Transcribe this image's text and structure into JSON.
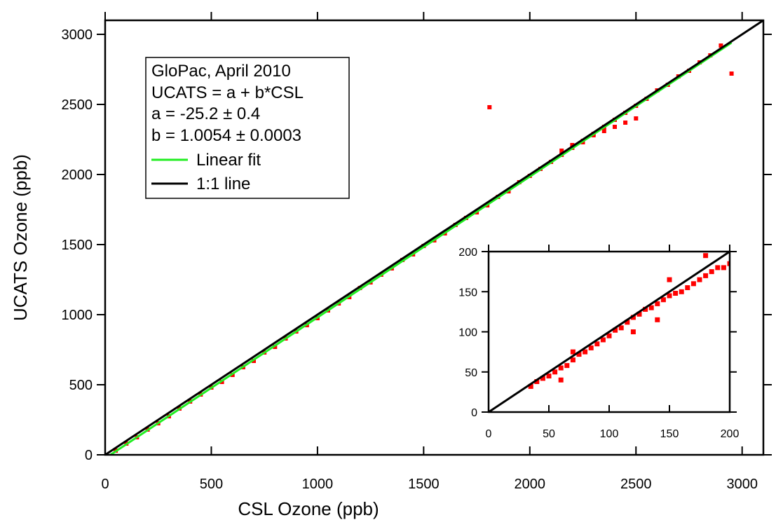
{
  "chart_data": [
    {
      "type": "scatter",
      "panel": "main",
      "xlabel": "CSL Ozone (ppb)",
      "ylabel": "UCATS Ozone (ppb)",
      "xlim": [
        0,
        3100
      ],
      "ylim": [
        0,
        3100
      ],
      "xticks": [
        0,
        500,
        1000,
        1500,
        2000,
        2500,
        3000
      ],
      "yticks": [
        0,
        500,
        1000,
        1500,
        2000,
        2500,
        3000
      ],
      "grid": false,
      "legend": {
        "placement": "top-left",
        "lines": [
          "GloPac, April 2010",
          "UCATS = a + b*CSL",
          "a = -25.2 ± 0.4",
          "b = 1.0054 ± 0.0003"
        ],
        "entries": [
          {
            "label": "Linear fit",
            "color": "#22ee22"
          },
          {
            "label": "1:1 line",
            "color": "#000000"
          }
        ]
      },
      "series": [
        {
          "name": "Data",
          "color": "#ff0000",
          "points": [
            [
              50,
              30
            ],
            [
              100,
              80
            ],
            [
              150,
              125
            ],
            [
              200,
              180
            ],
            [
              250,
              225
            ],
            [
              300,
              275
            ],
            [
              350,
              330
            ],
            [
              400,
              380
            ],
            [
              450,
              430
            ],
            [
              500,
              480
            ],
            [
              550,
              520
            ],
            [
              600,
              570
            ],
            [
              650,
              625
            ],
            [
              700,
              670
            ],
            [
              750,
              730
            ],
            [
              800,
              770
            ],
            [
              850,
              830
            ],
            [
              900,
              880
            ],
            [
              950,
              925
            ],
            [
              1000,
              975
            ],
            [
              1050,
              1030
            ],
            [
              1100,
              1080
            ],
            [
              1150,
              1125
            ],
            [
              1200,
              1190
            ],
            [
              1250,
              1230
            ],
            [
              1300,
              1285
            ],
            [
              1350,
              1330
            ],
            [
              1400,
              1390
            ],
            [
              1450,
              1430
            ],
            [
              1500,
              1490
            ],
            [
              1550,
              1530
            ],
            [
              1600,
              1580
            ],
            [
              1650,
              1640
            ],
            [
              1700,
              1690
            ],
            [
              1750,
              1730
            ],
            [
              1800,
              1780
            ],
            [
              1850,
              1840
            ],
            [
              1900,
              1880
            ],
            [
              1950,
              1945
            ],
            [
              2000,
              1990
            ],
            [
              2050,
              2040
            ],
            [
              2100,
              2090
            ],
            [
              2150,
              2140
            ],
            [
              2200,
              2190
            ],
            [
              2250,
              2230
            ],
            [
              2300,
              2290
            ],
            [
              2350,
              2340
            ],
            [
              2400,
              2390
            ],
            [
              2450,
              2440
            ],
            [
              2500,
              2490
            ],
            [
              2550,
              2540
            ],
            [
              2600,
              2600
            ],
            [
              2650,
              2640
            ],
            [
              2700,
              2700
            ],
            [
              2750,
              2740
            ],
            [
              2800,
              2800
            ],
            [
              2850,
              2850
            ],
            [
              2900,
              2920
            ],
            [
              2150,
              2170
            ],
            [
              2200,
              2210
            ],
            [
              2250,
              2240
            ],
            [
              2300,
              2280
            ],
            [
              2350,
              2310
            ],
            [
              2400,
              2340
            ],
            [
              2450,
              2370
            ],
            [
              2500,
              2400
            ],
            [
              1810,
              2480
            ],
            [
              2950,
              2720
            ]
          ]
        },
        {
          "name": "Linear fit",
          "color": "#22ee22",
          "x": [
            0,
            2950
          ],
          "y": [
            -25.2,
            2940.7
          ]
        },
        {
          "name": "1:1 line",
          "color": "#000000",
          "x": [
            0,
            3100
          ],
          "y": [
            0,
            3100
          ]
        }
      ]
    },
    {
      "type": "scatter",
      "panel": "inset",
      "xlabel": "",
      "ylabel": "",
      "xlim": [
        0,
        200
      ],
      "ylim": [
        0,
        200
      ],
      "xticks": [
        0,
        50,
        100,
        150,
        200
      ],
      "yticks": [
        0,
        50,
        100,
        150,
        200
      ],
      "grid": false,
      "series": [
        {
          "name": "Data",
          "color": "#ff0000",
          "points": [
            [
              35,
              32
            ],
            [
              40,
              38
            ],
            [
              45,
              42
            ],
            [
              50,
              45
            ],
            [
              55,
              50
            ],
            [
              60,
              55
            ],
            [
              65,
              58
            ],
            [
              70,
              65
            ],
            [
              75,
              72
            ],
            [
              80,
              75
            ],
            [
              85,
              80
            ],
            [
              90,
              85
            ],
            [
              95,
              90
            ],
            [
              100,
              95
            ],
            [
              105,
              102
            ],
            [
              110,
              105
            ],
            [
              115,
              112
            ],
            [
              120,
              118
            ],
            [
              125,
              122
            ],
            [
              130,
              128
            ],
            [
              135,
              130
            ],
            [
              140,
              135
            ],
            [
              145,
              140
            ],
            [
              150,
              145
            ],
            [
              155,
              148
            ],
            [
              160,
              150
            ],
            [
              165,
              155
            ],
            [
              170,
              160
            ],
            [
              175,
              165
            ],
            [
              180,
              170
            ],
            [
              185,
              175
            ],
            [
              190,
              180
            ],
            [
              195,
              180
            ],
            [
              200,
              185
            ],
            [
              70,
              75
            ],
            [
              60,
              40
            ],
            [
              120,
              100
            ],
            [
              140,
              115
            ],
            [
              150,
              165
            ],
            [
              180,
              195
            ]
          ]
        },
        {
          "name": "1:1 line",
          "color": "#000000",
          "x": [
            0,
            200
          ],
          "y": [
            0,
            200
          ]
        }
      ]
    }
  ]
}
